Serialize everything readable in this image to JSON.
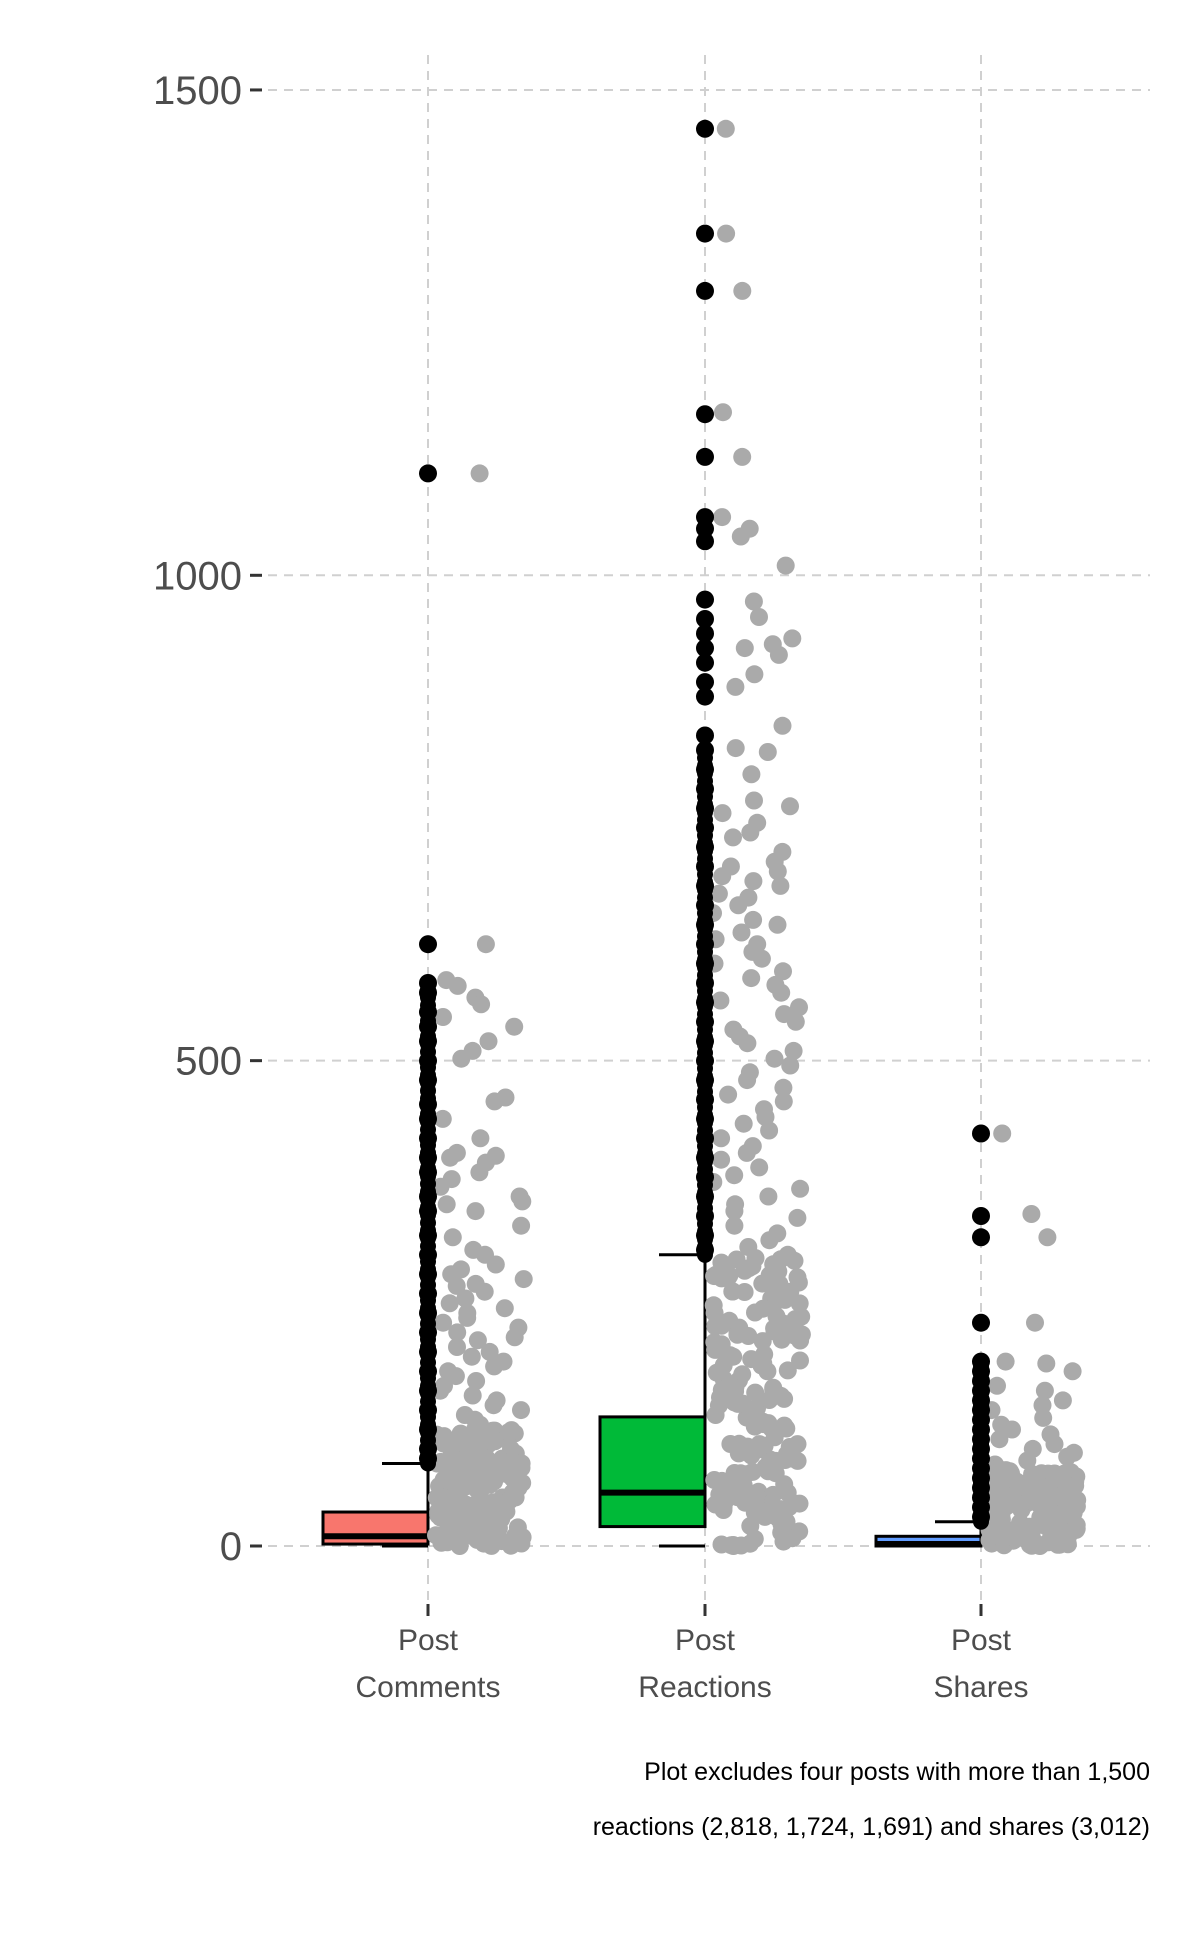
{
  "chart_data": {
    "type": "box",
    "title": "",
    "xlabel": "",
    "ylabel": "",
    "ylim": [
      -50,
      1560
    ],
    "yticks": [
      0,
      500,
      1000,
      1500
    ],
    "grid": true,
    "grid_style": "dashed",
    "categories": [
      {
        "line1": "Post",
        "line2": "Comments"
      },
      {
        "line1": "Post",
        "line2": "Reactions"
      },
      {
        "line1": "Post",
        "line2": "Shares"
      }
    ],
    "series": [
      {
        "name": "Post Comments",
        "color": "#F8766D",
        "box": {
          "whisker_low": 0,
          "q1": 2,
          "median": 10,
          "q3": 35,
          "whisker_high": 85
        },
        "outliers": [
          1105,
          620,
          580,
          570,
          550,
          535,
          520,
          500,
          480,
          455,
          440,
          420,
          400,
          385,
          360,
          345,
          320,
          300,
          280,
          260,
          240,
          220,
          200,
          180,
          160,
          140,
          120,
          100,
          90
        ],
        "jitter": [
          1105,
          620,
          583,
          577,
          565,
          558,
          545,
          535,
          520,
          510,
          502,
          462,
          458,
          440,
          420,
          405,
          402,
          400,
          395,
          385,
          378,
          370,
          360,
          355,
          352,
          345,
          330,
          318,
          305,
          300,
          290,
          285,
          280,
          275,
          270,
          268,
          262,
          255,
          250,
          245,
          240,
          235,
          230,
          225,
          220,
          215,
          212,
          205,
          200,
          195,
          190,
          185,
          180,
          175,
          170,
          165,
          160,
          155,
          150,
          145,
          140,
          135,
          130,
          125,
          120,
          115,
          110,
          105,
          100,
          95,
          90,
          85,
          80,
          75,
          70,
          65,
          60,
          55,
          50,
          45,
          40,
          35,
          30,
          25,
          20,
          15,
          10,
          5,
          0
        ]
      },
      {
        "name": "Post Reactions",
        "color": "#00BA38",
        "box": {
          "whisker_low": 0,
          "q1": 20,
          "median": 55,
          "q3": 133,
          "whisker_high": 300
        },
        "outliers": [
          1460,
          1352,
          1293,
          1166,
          1122,
          1060,
          1048,
          1035,
          975,
          955,
          940,
          925,
          910,
          890,
          875,
          835,
          820,
          800,
          780,
          760,
          740,
          720,
          700,
          680,
          660,
          640,
          620,
          600,
          580,
          560,
          540,
          520,
          500,
          480,
          460,
          440,
          420,
          400,
          380,
          360,
          340,
          320,
          305
        ],
        "jitter": [
          1460,
          1352,
          1293,
          1168,
          1122,
          1060,
          1048,
          1040,
          1010,
          973,
          957,
          935,
          929,
          925,
          918,
          898,
          885,
          845,
          822,
          818,
          795,
          768,
          762,
          755,
          745,
          735,
          730,
          715,
          705,
          700,
          695,
          690,
          685,
          680,
          672,
          668,
          660,
          652,
          645,
          640,
          632,
          625,
          620,
          612,
          605,
          600,
          592,
          585,
          578,
          570,
          562,
          555,
          548,
          540,
          532,
          525,
          518,
          510,
          502,
          495,
          488,
          480,
          472,
          465,
          458,
          450,
          442,
          435,
          428,
          420,
          412,
          405,
          398,
          390,
          382,
          375,
          368,
          360,
          352,
          345,
          338,
          330,
          322,
          315,
          308,
          300,
          292,
          285,
          278,
          270,
          262,
          255,
          248,
          240,
          232,
          225,
          218,
          210,
          202,
          195,
          188,
          180,
          172,
          165,
          158,
          150,
          142,
          135,
          128,
          120,
          112,
          105,
          98,
          90,
          82,
          75,
          68,
          60,
          52,
          45,
          38,
          30,
          22,
          15,
          8,
          0
        ]
      },
      {
        "name": "Post Shares",
        "color": "#619CFF",
        "box": {
          "whisker_low": 0,
          "q1": 0,
          "median": 2,
          "q3": 10,
          "whisker_high": 25
        },
        "outliers": [
          425,
          340,
          318,
          230,
          190,
          180,
          170,
          160,
          150,
          140,
          130,
          120,
          110,
          100,
          90,
          80,
          70,
          60,
          50,
          40,
          30
        ],
        "jitter": [
          425,
          342,
          318,
          230,
          190,
          188,
          180,
          165,
          160,
          150,
          145,
          140,
          132,
          125,
          120,
          115,
          110,
          105,
          100,
          96,
          92,
          88,
          84,
          80,
          76,
          72,
          68,
          64,
          60,
          56,
          52,
          48,
          44,
          40,
          36,
          32,
          28,
          24,
          20,
          16,
          12,
          8,
          4,
          0
        ]
      }
    ],
    "annotations": [
      "Plot excludes four posts with more than 1,500",
      "reactions (2,818, 1,724, 1,691) and shares (3,012)"
    ]
  }
}
